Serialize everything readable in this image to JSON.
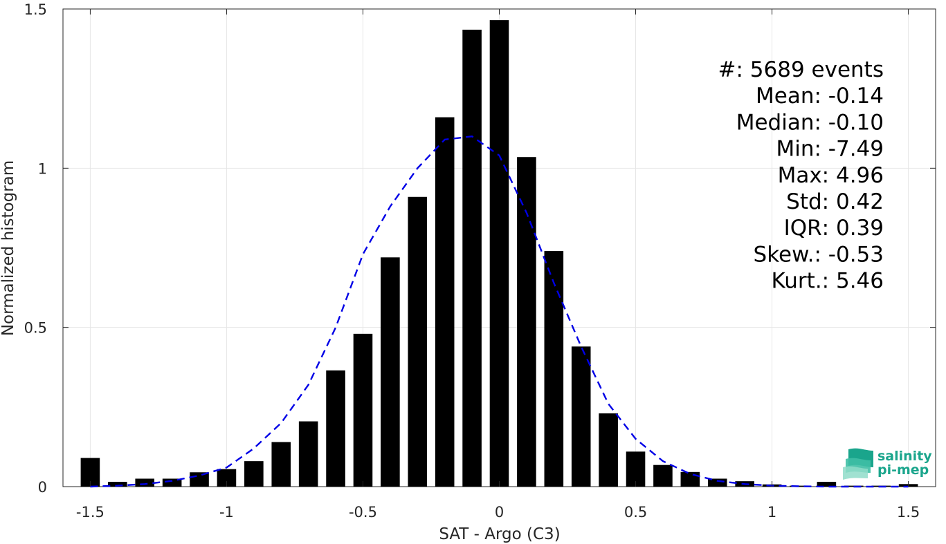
{
  "chart_data": {
    "type": "bar",
    "xlabel": "SAT - Argo (C3)",
    "ylabel": "Normalized histogram",
    "xlim": [
      -1.6,
      1.6
    ],
    "ylim": [
      0,
      1.5
    ],
    "xticks": [
      -1.5,
      -1,
      -0.5,
      0,
      0.5,
      1,
      1.5
    ],
    "xtick_labels": [
      "-1.5",
      "-1",
      "-0.5",
      "0",
      "0.5",
      "1",
      "1.5"
    ],
    "yticks": [
      0,
      0.5,
      1,
      1.5
    ],
    "ytick_labels": [
      "0",
      "0.5",
      "1",
      "1.5"
    ],
    "grid": true,
    "bar_width": 0.07,
    "bins": [
      -1.5,
      -1.4,
      -1.3,
      -1.2,
      -1.1,
      -1.0,
      -0.9,
      -0.8,
      -0.7,
      -0.6,
      -0.5,
      -0.4,
      -0.3,
      -0.2,
      -0.1,
      0.0,
      0.1,
      0.2,
      0.3,
      0.4,
      0.5,
      0.6,
      0.7,
      0.8,
      0.9,
      1.0,
      1.1,
      1.2,
      1.3,
      1.4,
      1.5
    ],
    "values": [
      0.09,
      0.015,
      0.025,
      0.025,
      0.045,
      0.055,
      0.08,
      0.14,
      0.205,
      0.365,
      0.48,
      0.72,
      0.91,
      1.16,
      1.435,
      1.465,
      1.035,
      0.74,
      0.44,
      0.23,
      0.11,
      0.068,
      0.046,
      0.025,
      0.017,
      0.007,
      0.003,
      0.015,
      0.003,
      0.003,
      0.008
    ],
    "fit_curve": {
      "style": "dashed",
      "color": "#0000e6",
      "x": [
        -1.5,
        -1.4,
        -1.3,
        -1.2,
        -1.1,
        -1.0,
        -0.9,
        -0.8,
        -0.7,
        -0.6,
        -0.5,
        -0.4,
        -0.3,
        -0.2,
        -0.1,
        0.0,
        0.1,
        0.2,
        0.3,
        0.4,
        0.5,
        0.6,
        0.7,
        0.8,
        0.9,
        1.0,
        1.1,
        1.2,
        1.3,
        1.4,
        1.5
      ],
      "y": [
        0.0,
        0.003,
        0.008,
        0.018,
        0.035,
        0.06,
        0.12,
        0.2,
        0.32,
        0.5,
        0.73,
        0.88,
        1.0,
        1.09,
        1.1,
        1.04,
        0.86,
        0.64,
        0.44,
        0.26,
        0.15,
        0.08,
        0.04,
        0.018,
        0.008,
        0.003,
        0.001,
        0.0,
        0.0,
        0.0,
        0.0
      ]
    },
    "annotations": [
      {
        "label": "#  ",
        "value": ": 5689 events"
      },
      {
        "label": "Mean ",
        "value": ": -0.14"
      },
      {
        "label": "Median ",
        "value": ": -0.10"
      },
      {
        "label": "Min ",
        "value": ": -7.49"
      },
      {
        "label": "Max ",
        "value": ": 4.96"
      },
      {
        "label": "Std ",
        "value": ": 0.42"
      },
      {
        "label": "IQR ",
        "value": ": 0.39"
      },
      {
        "label": "Skew. ",
        "value": ": -0.53"
      },
      {
        "label": "Kurt. ",
        "value": ": 5.46"
      }
    ]
  },
  "colors": {
    "bar": "#000000",
    "fit": "#0000e6",
    "grid": "#e6e6e6",
    "axis": "#262626",
    "logo": "#1aa58c"
  },
  "logo": {
    "line1": "salinity",
    "line2": "pi-mep",
    "icon": "wave-stack-icon"
  }
}
